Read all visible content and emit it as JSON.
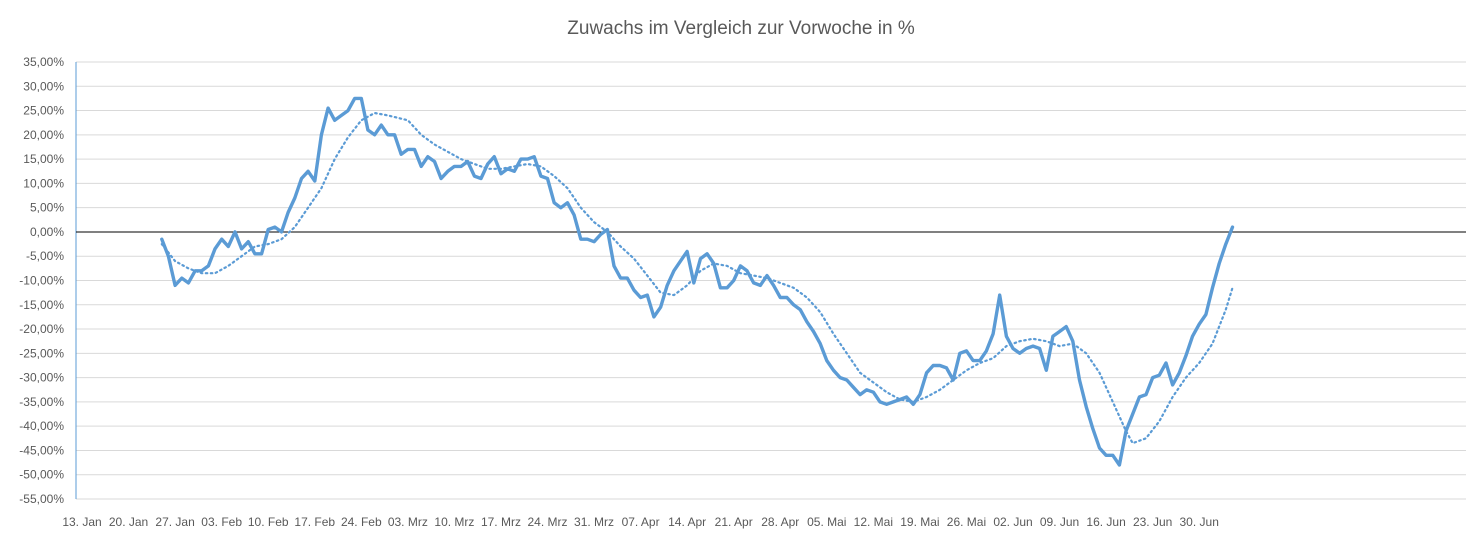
{
  "chart_data": {
    "type": "line",
    "title": "Zuwachs im Vergleich zur Vorwoche in %",
    "xlabel": "",
    "ylabel": "",
    "ylim": [
      -55,
      35
    ],
    "grid": true,
    "legend": "none",
    "x_start_label": "13. Jan",
    "xtick_labels": [
      "13. Jan",
      "20. Jan",
      "27. Jan",
      "03. Feb",
      "10. Feb",
      "17. Feb",
      "24. Feb",
      "03. Mrz",
      "10. Mrz",
      "17. Mrz",
      "24. Mrz",
      "31. Mrz",
      "07. Apr",
      "14. Apr",
      "21. Apr",
      "28. Apr",
      "05. Mai",
      "12. Mai",
      "19. Mai",
      "26. Mai",
      "02. Jun",
      "09. Jun",
      "16. Jun",
      "23. Jun",
      "30. Jun"
    ],
    "ytick_labels": [
      "35,00%",
      "30,00%",
      "25,00%",
      "20,00%",
      "15,00%",
      "10,00%",
      "5,00%",
      "0,00%",
      "-5,00%",
      "-10,00%",
      "-15,00%",
      "-20,00%",
      "-25,00%",
      "-30,00%",
      "-35,00%",
      "-40,00%",
      "-45,00%",
      "-50,00%",
      "-55,00%"
    ],
    "series": [
      {
        "style": "solid",
        "color": "#5b9bd5",
        "points": [
          [
            "25. Jan",
            -1.5
          ],
          [
            "26. Jan",
            -5
          ],
          [
            "27. Jan",
            -11
          ],
          [
            "28. Jan",
            -9.5
          ],
          [
            "29. Jan",
            -10.5
          ],
          [
            "30. Jan",
            -8
          ],
          [
            "31. Jan",
            -8
          ],
          [
            "01. Feb",
            -7
          ],
          [
            "02. Feb",
            -3.5
          ],
          [
            "03. Feb",
            -1.5
          ],
          [
            "04. Feb",
            -3
          ],
          [
            "05. Feb",
            0
          ],
          [
            "06. Feb",
            -3.5
          ],
          [
            "07. Feb",
            -2
          ],
          [
            "08. Feb",
            -4.5
          ],
          [
            "09. Feb",
            -4.5
          ],
          [
            "10. Feb",
            0.5
          ],
          [
            "11. Feb",
            1
          ],
          [
            "12. Feb",
            0
          ],
          [
            "13. Feb",
            4
          ],
          [
            "14. Feb",
            7
          ],
          [
            "15. Feb",
            11
          ],
          [
            "16. Feb",
            12.5
          ],
          [
            "17. Feb",
            10.5
          ],
          [
            "18. Feb",
            20
          ],
          [
            "19. Feb",
            25.5
          ],
          [
            "20. Feb",
            23
          ],
          [
            "21. Feb",
            24
          ],
          [
            "22. Feb",
            25
          ],
          [
            "23. Feb",
            27.5
          ],
          [
            "24. Feb",
            27.5
          ],
          [
            "25. Feb",
            21
          ],
          [
            "26. Feb",
            20
          ],
          [
            "27. Feb",
            22
          ],
          [
            "28. Feb",
            20
          ],
          [
            "29. Feb",
            20
          ],
          [
            "01. Mrz",
            16
          ],
          [
            "02. Mrz",
            17
          ],
          [
            "03. Mrz",
            17
          ],
          [
            "04. Mrz",
            13.5
          ],
          [
            "05. Mrz",
            15.5
          ],
          [
            "06. Mrz",
            14.5
          ],
          [
            "07. Mrz",
            11
          ],
          [
            "08. Mrz",
            12.5
          ],
          [
            "09. Mrz",
            13.5
          ],
          [
            "10. Mrz",
            13.5
          ],
          [
            "11. Mrz",
            14.5
          ],
          [
            "12. Mrz",
            11.5
          ],
          [
            "13. Mrz",
            11
          ],
          [
            "14. Mrz",
            14
          ],
          [
            "15. Mrz",
            15.5
          ],
          [
            "16. Mrz",
            12
          ],
          [
            "17. Mrz",
            13
          ],
          [
            "18. Mrz",
            12.5
          ],
          [
            "19. Mrz",
            15
          ],
          [
            "20. Mrz",
            15
          ],
          [
            "21. Mrz",
            15.5
          ],
          [
            "22. Mrz",
            11.5
          ],
          [
            "23. Mrz",
            11
          ],
          [
            "24. Mrz",
            6
          ],
          [
            "25. Mrz",
            5
          ],
          [
            "26. Mrz",
            6
          ],
          [
            "27. Mrz",
            3.5
          ],
          [
            "28. Mrz",
            -1.5
          ],
          [
            "29. Mrz",
            -1.5
          ],
          [
            "30. Mrz",
            -2
          ],
          [
            "31. Mrz",
            -0.5
          ],
          [
            "01. Apr",
            0.5
          ],
          [
            "02. Apr",
            -7
          ],
          [
            "03. Apr",
            -9.5
          ],
          [
            "04. Apr",
            -9.5
          ],
          [
            "05. Apr",
            -12
          ],
          [
            "06. Apr",
            -13.5
          ],
          [
            "07. Apr",
            -13
          ],
          [
            "08. Apr",
            -17.5
          ],
          [
            "09. Apr",
            -15.5
          ],
          [
            "10. Apr",
            -11
          ],
          [
            "11. Apr",
            -8
          ],
          [
            "12. Apr",
            -6
          ],
          [
            "13. Apr",
            -4
          ],
          [
            "14. Apr",
            -10.5
          ],
          [
            "15. Apr",
            -5.5
          ],
          [
            "16. Apr",
            -4.5
          ],
          [
            "17. Apr",
            -6.5
          ],
          [
            "18. Apr",
            -11.5
          ],
          [
            "19. Apr",
            -11.5
          ],
          [
            "20. Apr",
            -10
          ],
          [
            "21. Apr",
            -7
          ],
          [
            "22. Apr",
            -8
          ],
          [
            "23. Apr",
            -10.5
          ],
          [
            "24. Apr",
            -11
          ],
          [
            "25. Apr",
            -9
          ],
          [
            "26. Apr",
            -11
          ],
          [
            "27. Apr",
            -13.5
          ],
          [
            "28. Apr",
            -13.5
          ],
          [
            "29. Apr",
            -15
          ],
          [
            "30. Apr",
            -16
          ],
          [
            "01. Mai",
            -18.5
          ],
          [
            "02. Mai",
            -20.5
          ],
          [
            "03. Mai",
            -23
          ],
          [
            "04. Mai",
            -26.5
          ],
          [
            "05. Mai",
            -28.5
          ],
          [
            "06. Mai",
            -30
          ],
          [
            "07. Mai",
            -30.5
          ],
          [
            "08. Mai",
            -32
          ],
          [
            "09. Mai",
            -33.5
          ],
          [
            "10. Mai",
            -32.5
          ],
          [
            "11. Mai",
            -33
          ],
          [
            "12. Mai",
            -35
          ],
          [
            "13. Mai",
            -35.5
          ],
          [
            "14. Mai",
            -35
          ],
          [
            "15. Mai",
            -34.5
          ],
          [
            "16. Mai",
            -34
          ],
          [
            "17. Mai",
            -35.5
          ],
          [
            "18. Mai",
            -33.5
          ],
          [
            "19. Mai",
            -29
          ],
          [
            "20. Mai",
            -27.5
          ],
          [
            "21. Mai",
            -27.5
          ],
          [
            "22. Mai",
            -28
          ],
          [
            "23. Mai",
            -30.5
          ],
          [
            "24. Mai",
            -25
          ],
          [
            "25. Mai",
            -24.5
          ],
          [
            "26. Mai",
            -26.5
          ],
          [
            "27. Mai",
            -26.5
          ],
          [
            "28. Mai",
            -24.5
          ],
          [
            "29. Mai",
            -21
          ],
          [
            "30. Mai",
            -13
          ],
          [
            "31. Mai",
            -21.5
          ],
          [
            "01. Jun",
            -24
          ],
          [
            "02. Jun",
            -25
          ],
          [
            "03. Jun",
            -24
          ],
          [
            "04. Jun",
            -23.5
          ],
          [
            "05. Jun",
            -24
          ],
          [
            "06. Jun",
            -28.5
          ],
          [
            "07. Jun",
            -21.5
          ],
          [
            "08. Jun",
            -20.5
          ],
          [
            "09. Jun",
            -19.5
          ],
          [
            "10. Jun",
            -22.5
          ],
          [
            "11. Jun",
            -30.5
          ],
          [
            "12. Jun",
            -36
          ],
          [
            "13. Jun",
            -40.5
          ],
          [
            "14. Jun",
            -44.5
          ],
          [
            "15. Jun",
            -46
          ],
          [
            "16. Jun",
            -46
          ],
          [
            "17. Jun",
            -48
          ],
          [
            "18. Jun",
            -41
          ],
          [
            "19. Jun",
            -37.5
          ],
          [
            "20. Jun",
            -34
          ],
          [
            "21. Jun",
            -33.5
          ],
          [
            "22. Jun",
            -30
          ],
          [
            "23. Jun",
            -29.5
          ],
          [
            "24. Jun",
            -27
          ],
          [
            "25. Jun",
            -31.5
          ],
          [
            "26. Jun",
            -29
          ],
          [
            "27. Jun",
            -25.5
          ],
          [
            "28. Jun",
            -21.5
          ],
          [
            "29. Jun",
            -19
          ],
          [
            "30. Jun",
            -17
          ],
          [
            "01. Jul",
            -11.5
          ],
          [
            "02. Jul",
            -6.5
          ],
          [
            "03. Jul",
            -2.5
          ],
          [
            "04. Jul",
            1
          ]
        ]
      },
      {
        "style": "dotted",
        "color": "#5b9bd5",
        "points": [
          [
            "25. Jan",
            -2.5
          ],
          [
            "27. Jan",
            -6
          ],
          [
            "29. Jan",
            -7.5
          ],
          [
            "31. Jan",
            -8.5
          ],
          [
            "02. Feb",
            -8.5
          ],
          [
            "04. Feb",
            -7
          ],
          [
            "06. Feb",
            -5
          ],
          [
            "08. Feb",
            -3
          ],
          [
            "10. Feb",
            -2.5
          ],
          [
            "12. Feb",
            -1.5
          ],
          [
            "14. Feb",
            1
          ],
          [
            "16. Feb",
            5
          ],
          [
            "18. Feb",
            9
          ],
          [
            "20. Feb",
            15
          ],
          [
            "22. Feb",
            19.5
          ],
          [
            "24. Feb",
            23
          ],
          [
            "26. Feb",
            24.5
          ],
          [
            "28. Feb",
            24
          ],
          [
            "02. Mrz",
            23
          ],
          [
            "04. Mrz",
            20
          ],
          [
            "06. Mrz",
            18
          ],
          [
            "08. Mrz",
            16.5
          ],
          [
            "10. Mrz",
            15
          ],
          [
            "12. Mrz",
            14
          ],
          [
            "14. Mrz",
            13
          ],
          [
            "16. Mrz",
            13
          ],
          [
            "18. Mrz",
            13.5
          ],
          [
            "20. Mrz",
            14
          ],
          [
            "22. Mrz",
            13.5
          ],
          [
            "24. Mrz",
            11.5
          ],
          [
            "26. Mrz",
            9
          ],
          [
            "28. Mrz",
            5
          ],
          [
            "30. Mrz",
            2
          ],
          [
            "01. Apr",
            0
          ],
          [
            "03. Apr",
            -3
          ],
          [
            "05. Apr",
            -5.5
          ],
          [
            "07. Apr",
            -9
          ],
          [
            "09. Apr",
            -12.5
          ],
          [
            "11. Apr",
            -13
          ],
          [
            "13. Apr",
            -11
          ],
          [
            "15. Apr",
            -8
          ],
          [
            "17. Apr",
            -6.5
          ],
          [
            "19. Apr",
            -7
          ],
          [
            "21. Apr",
            -8.5
          ],
          [
            "23. Apr",
            -9
          ],
          [
            "25. Apr",
            -9.5
          ],
          [
            "27. Apr",
            -10.5
          ],
          [
            "29. Apr",
            -11.5
          ],
          [
            "01. Mai",
            -13.5
          ],
          [
            "03. Mai",
            -16.5
          ],
          [
            "05. Mai",
            -21
          ],
          [
            "07. Mai",
            -25
          ],
          [
            "09. Mai",
            -29
          ],
          [
            "11. Mai",
            -31
          ],
          [
            "13. Mai",
            -33
          ],
          [
            "15. Mai",
            -34.5
          ],
          [
            "17. Mai",
            -35
          ],
          [
            "19. Mai",
            -34
          ],
          [
            "21. Mai",
            -32.5
          ],
          [
            "23. Mai",
            -30.5
          ],
          [
            "25. Mai",
            -28.5
          ],
          [
            "27. Mai",
            -27
          ],
          [
            "29. Mai",
            -26
          ],
          [
            "31. Mai",
            -23.5
          ],
          [
            "02. Jun",
            -22.5
          ],
          [
            "04. Jun",
            -22
          ],
          [
            "06. Jun",
            -22.5
          ],
          [
            "08. Jun",
            -23.5
          ],
          [
            "10. Jun",
            -23
          ],
          [
            "12. Jun",
            -25
          ],
          [
            "14. Jun",
            -29
          ],
          [
            "16. Jun",
            -35
          ],
          [
            "18. Jun",
            -41
          ],
          [
            "19. Jun",
            -43.5
          ],
          [
            "21. Jun",
            -42.5
          ],
          [
            "23. Jun",
            -39
          ],
          [
            "25. Jun",
            -34
          ],
          [
            "27. Jun",
            -30
          ],
          [
            "29. Jun",
            -27
          ],
          [
            "01. Jul",
            -23
          ],
          [
            "03. Jul",
            -16
          ],
          [
            "04. Jul",
            -11.5
          ]
        ]
      }
    ]
  }
}
